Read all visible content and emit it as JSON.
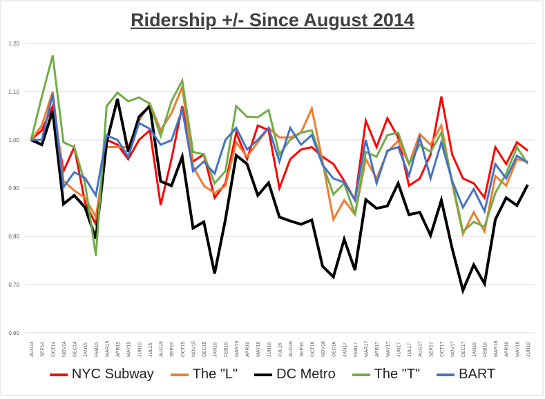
{
  "chart_data": {
    "type": "line",
    "title": "Ridership +/- Since August 2014",
    "xlabel": "",
    "ylabel": "",
    "ylim": [
      0.6,
      1.2
    ],
    "yticks": [
      "0.60",
      "0.70",
      "0.80",
      "0.90",
      "1.00",
      "1.10",
      "1.20"
    ],
    "grid": true,
    "legend_position": "bottom",
    "categories": [
      "AUG14",
      "SEP14",
      "OCT14",
      "NOV14",
      "DEC14",
      "JAN15",
      "FEB15",
      "MAR15",
      "APR15",
      "MAY15",
      "JUN15",
      "JUL15",
      "AUG15",
      "SEP15",
      "OCT15",
      "NOV15",
      "DEC15",
      "JAN16",
      "FEB16",
      "MAR16",
      "APR16",
      "MAY16",
      "JUN16",
      "JUL16",
      "AUG16",
      "SEP16",
      "OCT16",
      "NOV16",
      "DEC16",
      "JAN17",
      "FEB17",
      "MAR17",
      "APR17",
      "MAY17",
      "JUN17",
      "JUL17",
      "AUG17",
      "SEP17",
      "OCT17",
      "NOV17",
      "DEC17",
      "JAN18",
      "FEB18",
      "MAR18",
      "APR18",
      "MAY18",
      "JUN18"
    ],
    "series": [
      {
        "name": "NYC Subway",
        "color": "#ff0000",
        "values": [
          1.0,
          1.02,
          1.07,
          0.935,
          0.985,
          0.87,
          0.825,
          1.0,
          0.99,
          0.96,
          1.0,
          1.02,
          0.865,
          0.96,
          1.07,
          0.955,
          0.97,
          0.88,
          0.91,
          1.015,
          0.96,
          1.03,
          1.02,
          0.9,
          0.96,
          0.98,
          0.985,
          0.965,
          0.95,
          0.915,
          0.875,
          1.04,
          0.985,
          1.045,
          1.005,
          0.905,
          0.92,
          0.97,
          1.09,
          0.97,
          0.92,
          0.91,
          0.88,
          0.985,
          0.95,
          0.995,
          0.978
        ]
      },
      {
        "name": "The \"L\"",
        "color": "#ed7d31",
        "values": [
          1.0,
          1.03,
          1.1,
          0.915,
          0.895,
          0.88,
          0.84,
          0.985,
          0.985,
          0.985,
          1.04,
          1.075,
          1.02,
          1.055,
          1.11,
          0.945,
          0.905,
          0.89,
          0.905,
          0.995,
          0.965,
          0.995,
          1.025,
          1.005,
          1.005,
          1.015,
          1.065,
          0.955,
          0.835,
          0.875,
          0.845,
          0.96,
          0.92,
          0.975,
          0.998,
          0.95,
          1.012,
          0.99,
          1.03,
          0.91,
          0.805,
          0.85,
          0.81,
          0.925,
          0.905,
          0.96,
          0.955
        ]
      },
      {
        "name": "DC Metro",
        "color": "#000000",
        "values": [
          1.0,
          0.99,
          1.06,
          0.867,
          0.885,
          0.86,
          0.795,
          0.995,
          1.085,
          0.975,
          1.048,
          1.07,
          0.914,
          0.905,
          0.965,
          0.817,
          0.83,
          0.723,
          0.835,
          0.968,
          0.95,
          0.885,
          0.911,
          0.84,
          0.832,
          0.825,
          0.834,
          0.738,
          0.716,
          0.794,
          0.73,
          0.876,
          0.858,
          0.863,
          0.91,
          0.845,
          0.85,
          0.802,
          0.875,
          0.775,
          0.688,
          0.741,
          0.702,
          0.835,
          0.88,
          0.864,
          0.907
        ]
      },
      {
        "name": "The \"T\"",
        "color": "#70ad47",
        "values": [
          1.0,
          1.09,
          1.175,
          0.995,
          0.985,
          0.91,
          0.76,
          1.07,
          1.098,
          1.08,
          1.088,
          1.075,
          1.008,
          1.08,
          1.123,
          0.975,
          0.97,
          0.91,
          0.935,
          1.07,
          1.048,
          1.047,
          1.062,
          0.97,
          1.0,
          1.015,
          1.02,
          0.95,
          0.887,
          0.91,
          0.845,
          0.975,
          0.965,
          1.01,
          1.015,
          0.95,
          0.99,
          0.975,
          1.015,
          0.915,
          0.81,
          0.83,
          0.82,
          0.89,
          0.93,
          0.985,
          0.95
        ]
      },
      {
        "name": "BART",
        "color": "#4472c4",
        "values": [
          1.0,
          1.0,
          1.095,
          0.902,
          0.933,
          0.921,
          0.885,
          1.009,
          1.0,
          0.965,
          1.035,
          1.023,
          0.99,
          0.999,
          1.063,
          0.935,
          0.955,
          0.93,
          1.0,
          1.025,
          0.98,
          1.0,
          1.025,
          0.955,
          1.025,
          0.99,
          1.01,
          0.948,
          0.92,
          0.912,
          0.875,
          1.0,
          0.91,
          0.978,
          0.985,
          0.926,
          1.005,
          0.92,
          0.995,
          0.915,
          0.86,
          0.898,
          0.852,
          0.95,
          0.92,
          0.967,
          0.953
        ]
      }
    ]
  }
}
